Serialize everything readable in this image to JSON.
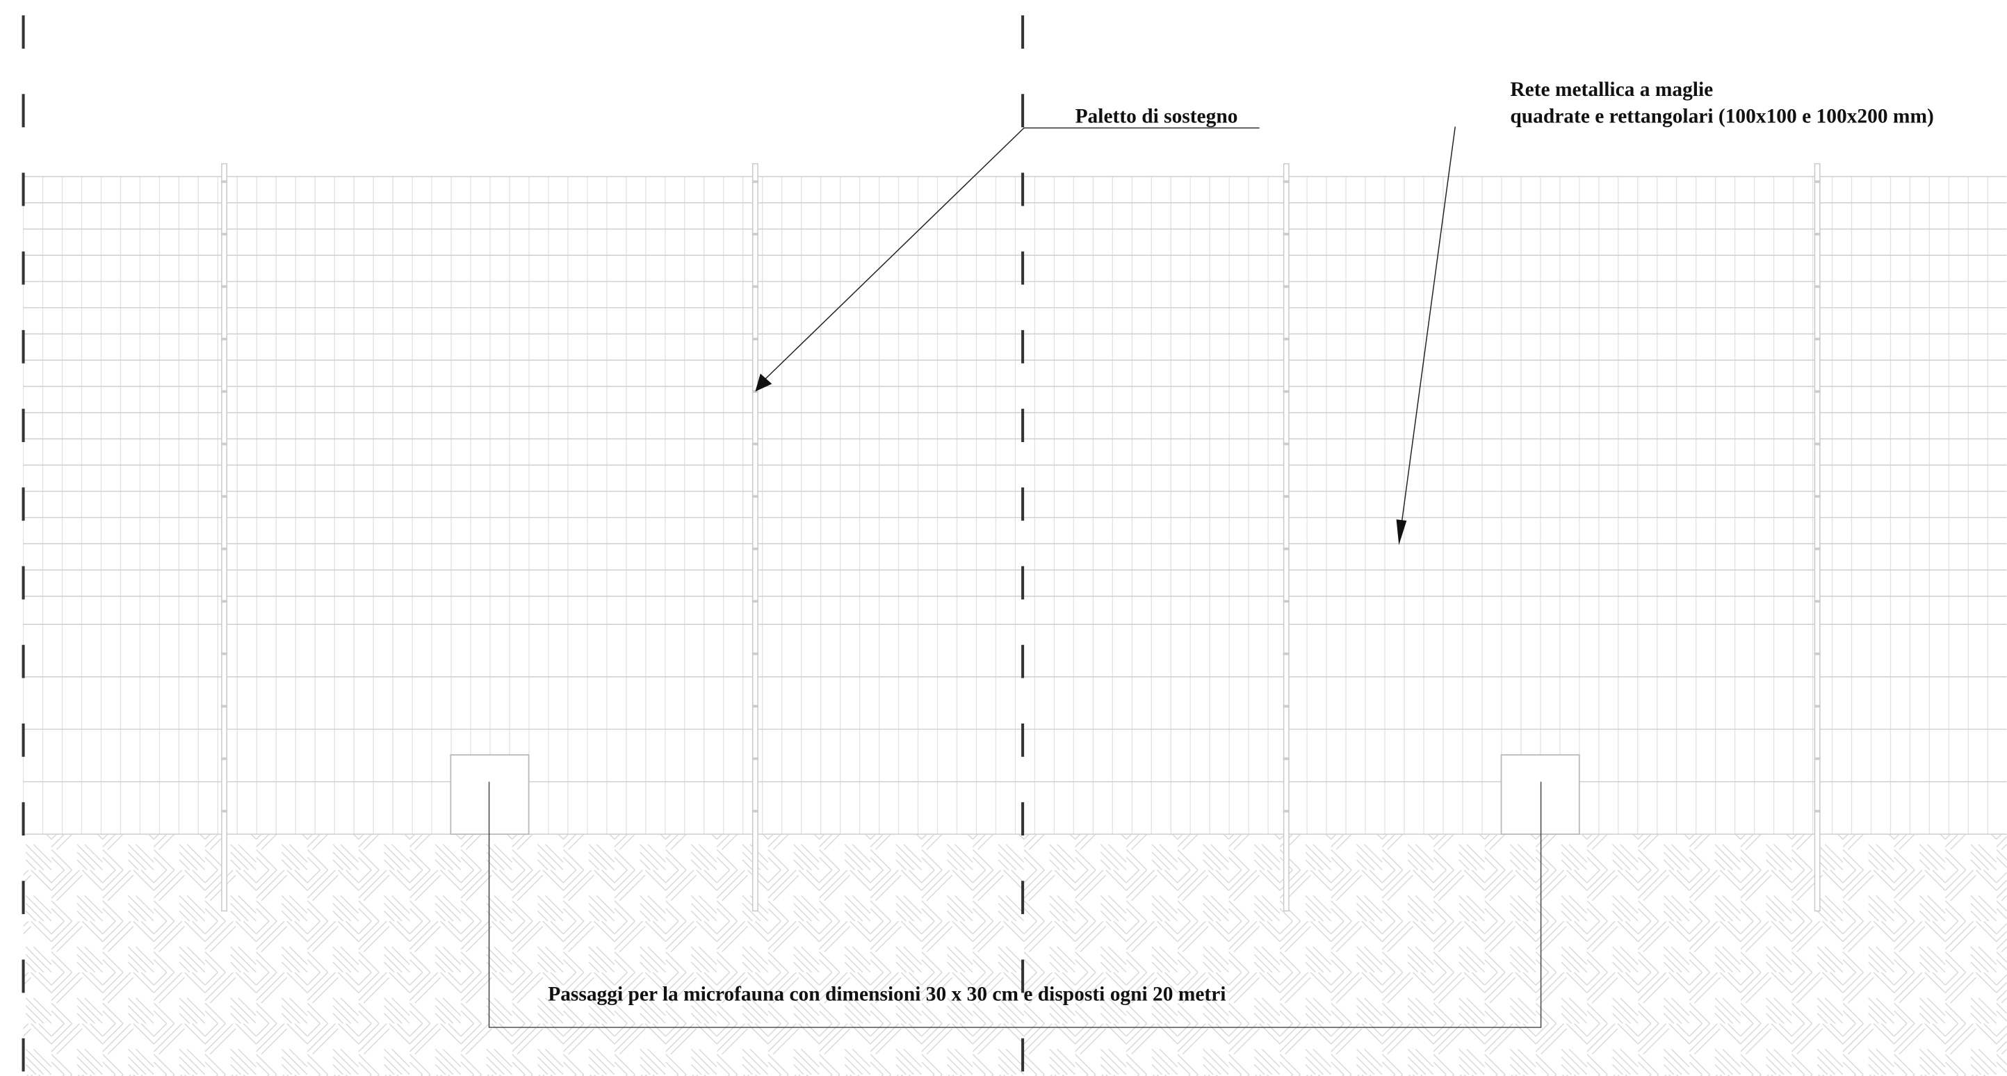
{
  "annotations": {
    "post": {
      "label": "Paletto di sostegno"
    },
    "mesh": {
      "lines": [
        "Rete metallica a maglie",
        "quadrate e rettangolari (100x100 e 100x200 mm)"
      ]
    },
    "passages": {
      "label": "Passaggi per la microfauna con dimensioni  30 x 30 cm e disposti ogni 20 metri"
    }
  }
}
